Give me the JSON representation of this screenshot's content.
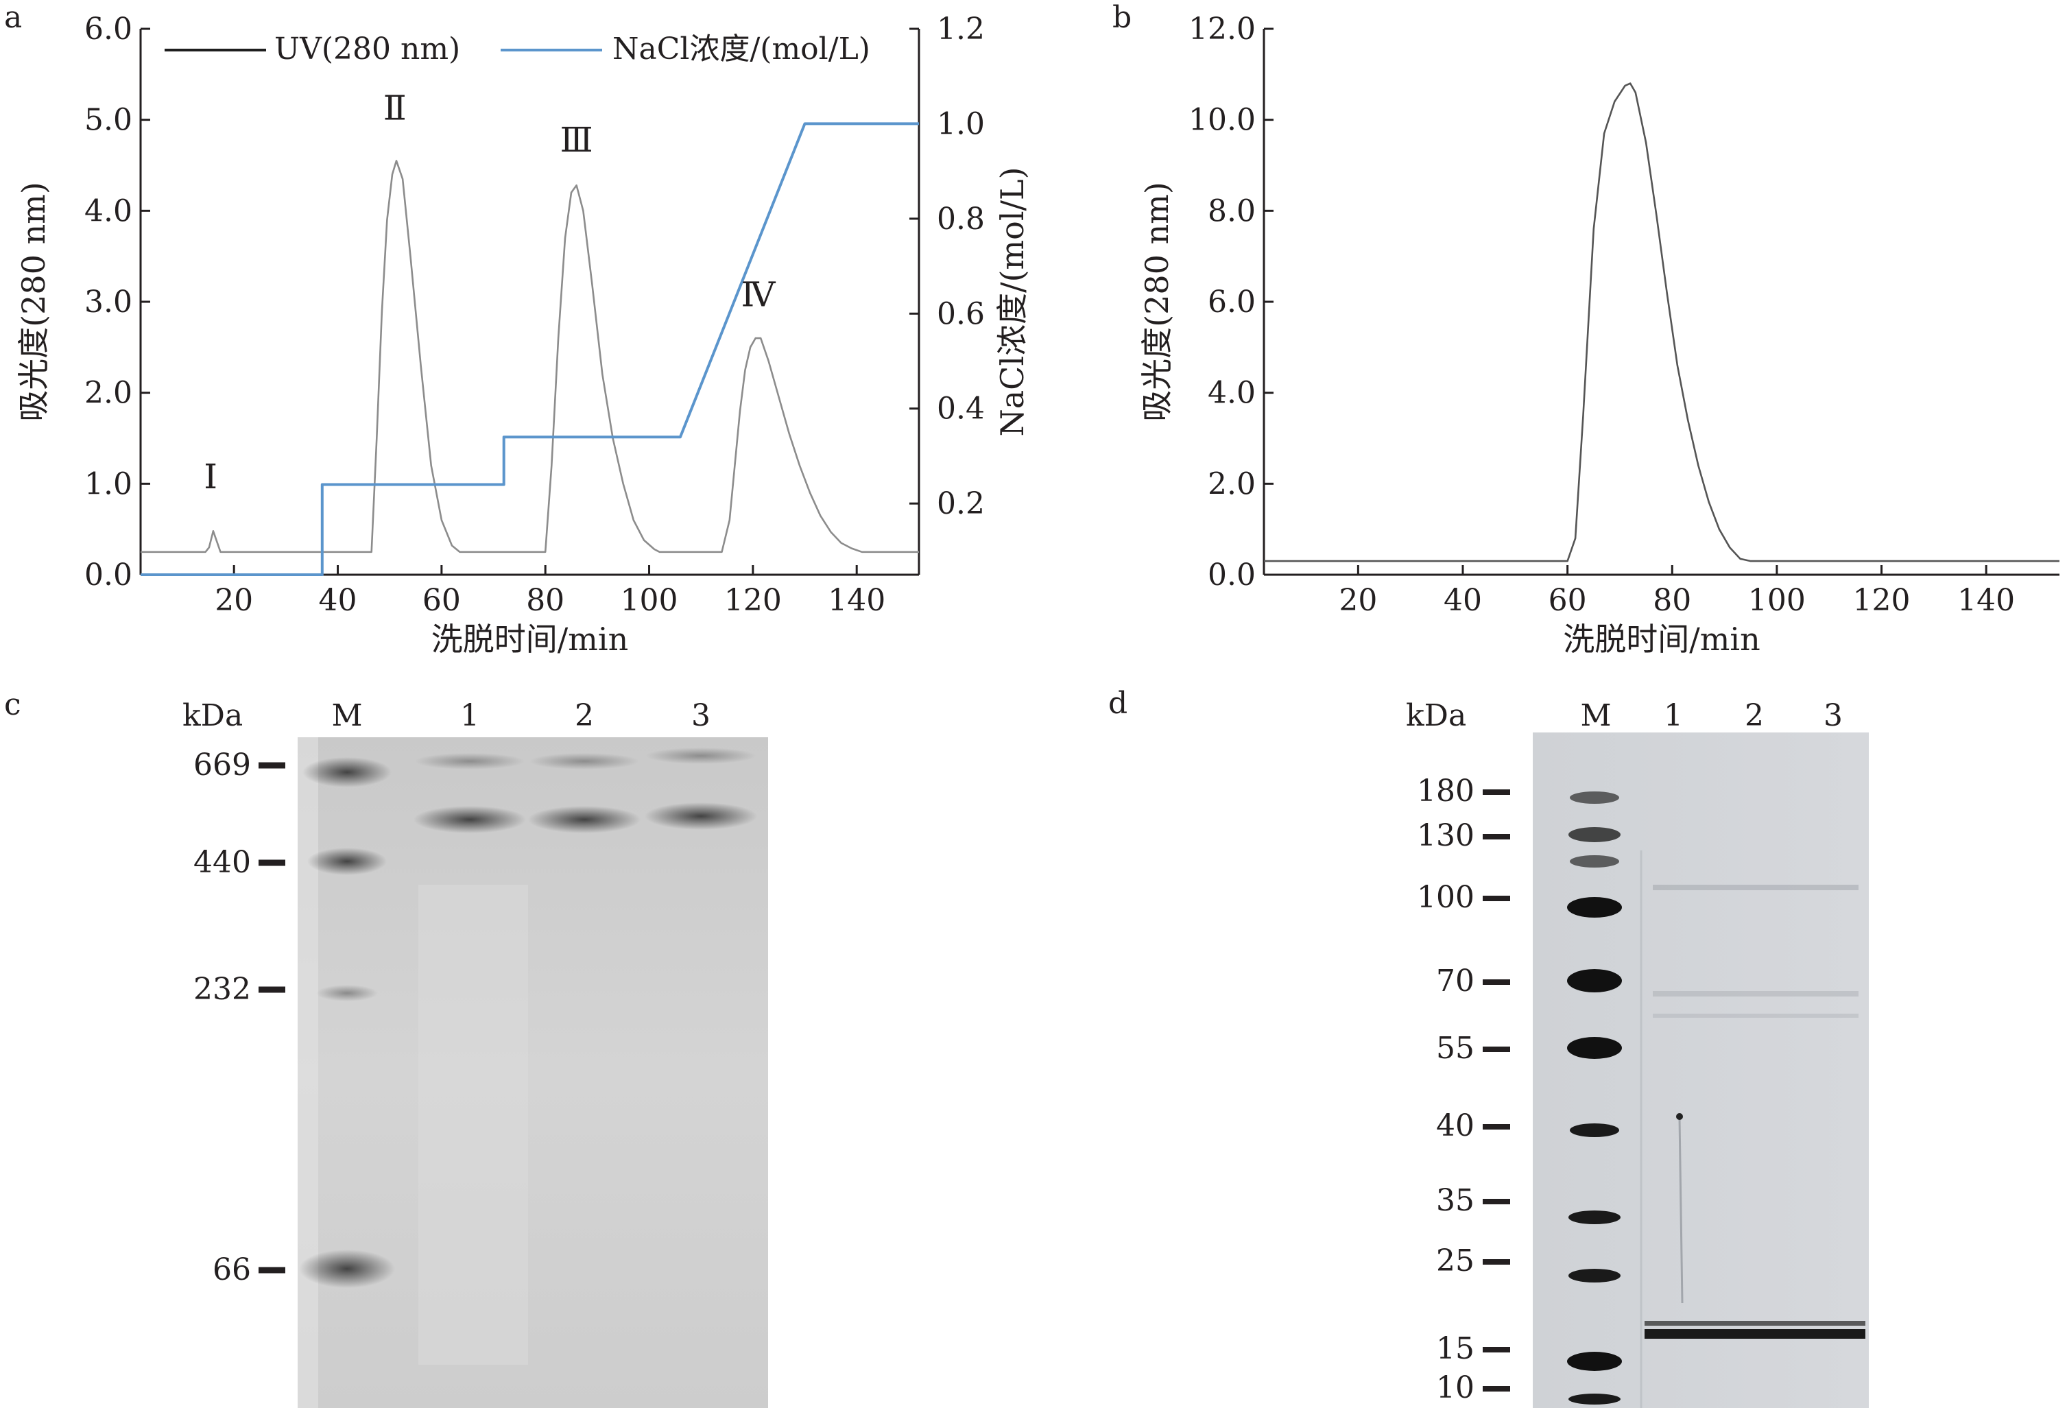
{
  "panels": {
    "a": {
      "label": "a",
      "legend": {
        "uv": "UV(280 nm)",
        "nacl": "NaCl浓度/(mol/L)"
      },
      "peak_labels": [
        "Ⅰ",
        "Ⅱ",
        "Ⅲ",
        "Ⅳ"
      ]
    },
    "b": {
      "label": "b"
    },
    "c": {
      "label": "c",
      "unit": "kDa",
      "lanes": [
        "M",
        "1",
        "2",
        "3"
      ],
      "markers": [
        "669",
        "440",
        "232",
        "66"
      ]
    },
    "d": {
      "label": "d",
      "unit": "kDa",
      "lanes": [
        "M",
        "1",
        "2",
        "3"
      ],
      "markers": [
        "180",
        "130",
        "100",
        "70",
        "55",
        "40",
        "35",
        "25",
        "15",
        "10"
      ]
    }
  },
  "chart_data": [
    {
      "type": "line",
      "panel": "a",
      "xlabel": "洗脱时间/min",
      "ylabel": "吸光度(280 nm)",
      "y2label": "NaCl浓度/(mol/L)",
      "xlim": [
        2,
        152
      ],
      "ylim": [
        0,
        6
      ],
      "y2lim": [
        0.05,
        1.2
      ],
      "xticks": [
        20,
        40,
        60,
        80,
        100,
        120,
        140
      ],
      "yticks": [
        "0.0",
        "1.0",
        "2.0",
        "3.0",
        "4.0",
        "5.0",
        "6.0"
      ],
      "y2ticks": [
        "0.2",
        "0.4",
        "0.6",
        "0.8",
        "1.0",
        "1.2"
      ],
      "legend_position": "top",
      "series": [
        {
          "name": "UV(280 nm)",
          "color": "#8c8c8c",
          "axis": "left",
          "x": [
            2,
            14.5,
            15.2,
            16,
            16.6,
            17.4,
            18.2,
            46.5,
            47.5,
            48.5,
            49.5,
            50.5,
            51.3,
            52.5,
            54,
            56,
            58,
            60,
            62,
            63.5,
            72.5,
            80,
            81.2,
            82.5,
            83.8,
            85,
            86,
            87.3,
            89,
            91,
            93,
            95,
            97,
            99,
            101,
            102,
            114,
            115.5,
            116.5,
            117.5,
            118.5,
            119.5,
            120.5,
            121.5,
            123,
            125,
            127,
            129,
            131,
            133,
            135,
            137,
            139,
            141,
            152
          ],
          "y": [
            0.25,
            0.25,
            0.3,
            0.48,
            0.38,
            0.25,
            0.25,
            0.25,
            1.5,
            2.9,
            3.9,
            4.4,
            4.55,
            4.35,
            3.5,
            2.3,
            1.2,
            0.6,
            0.32,
            0.25,
            0.25,
            0.25,
            1.2,
            2.6,
            3.7,
            4.2,
            4.28,
            4.0,
            3.2,
            2.2,
            1.5,
            1.0,
            0.6,
            0.38,
            0.28,
            0.25,
            0.25,
            0.6,
            1.2,
            1.8,
            2.25,
            2.5,
            2.6,
            2.6,
            2.35,
            1.95,
            1.55,
            1.2,
            0.9,
            0.65,
            0.47,
            0.35,
            0.29,
            0.25,
            0.25
          ]
        },
        {
          "name": "NaCl浓度/(mol/L)",
          "color": "#5b95cc",
          "axis": "right",
          "x": [
            2,
            37,
            37,
            72,
            72,
            106,
            130,
            152
          ],
          "y": [
            0.05,
            0.05,
            0.24,
            0.24,
            0.34,
            0.34,
            1.0,
            1.0
          ]
        }
      ],
      "annotations": [
        {
          "text": "Ⅰ",
          "x": 15.5,
          "y": 0.95
        },
        {
          "text": "Ⅱ",
          "x": 51,
          "y": 5.0
        },
        {
          "text": "Ⅲ",
          "x": 86,
          "y": 4.65
        },
        {
          "text": "Ⅳ",
          "x": 121,
          "y": 2.95
        }
      ]
    },
    {
      "type": "line",
      "panel": "b",
      "xlabel": "洗脱时间/min",
      "ylabel": "吸光度(280 nm)",
      "xlim": [
        2,
        154
      ],
      "ylim": [
        0,
        12
      ],
      "xticks": [
        20,
        40,
        60,
        80,
        100,
        120,
        140
      ],
      "yticks": [
        "0.0",
        "2.0",
        "4.0",
        "6.0",
        "8.0",
        "10.0",
        "12.0"
      ],
      "series": [
        {
          "name": "",
          "color": "#555555",
          "x": [
            2,
            60,
            61.5,
            63,
            65,
            67,
            69,
            71,
            72,
            73,
            75,
            77,
            79,
            81,
            83,
            85,
            87,
            89,
            91,
            93,
            95,
            97,
            99,
            154
          ],
          "y": [
            0.3,
            0.3,
            0.8,
            3.5,
            7.6,
            9.7,
            10.4,
            10.75,
            10.8,
            10.6,
            9.5,
            7.9,
            6.2,
            4.6,
            3.4,
            2.4,
            1.6,
            1.0,
            0.6,
            0.35,
            0.3,
            0.3,
            0.3,
            0.3
          ]
        }
      ]
    }
  ]
}
